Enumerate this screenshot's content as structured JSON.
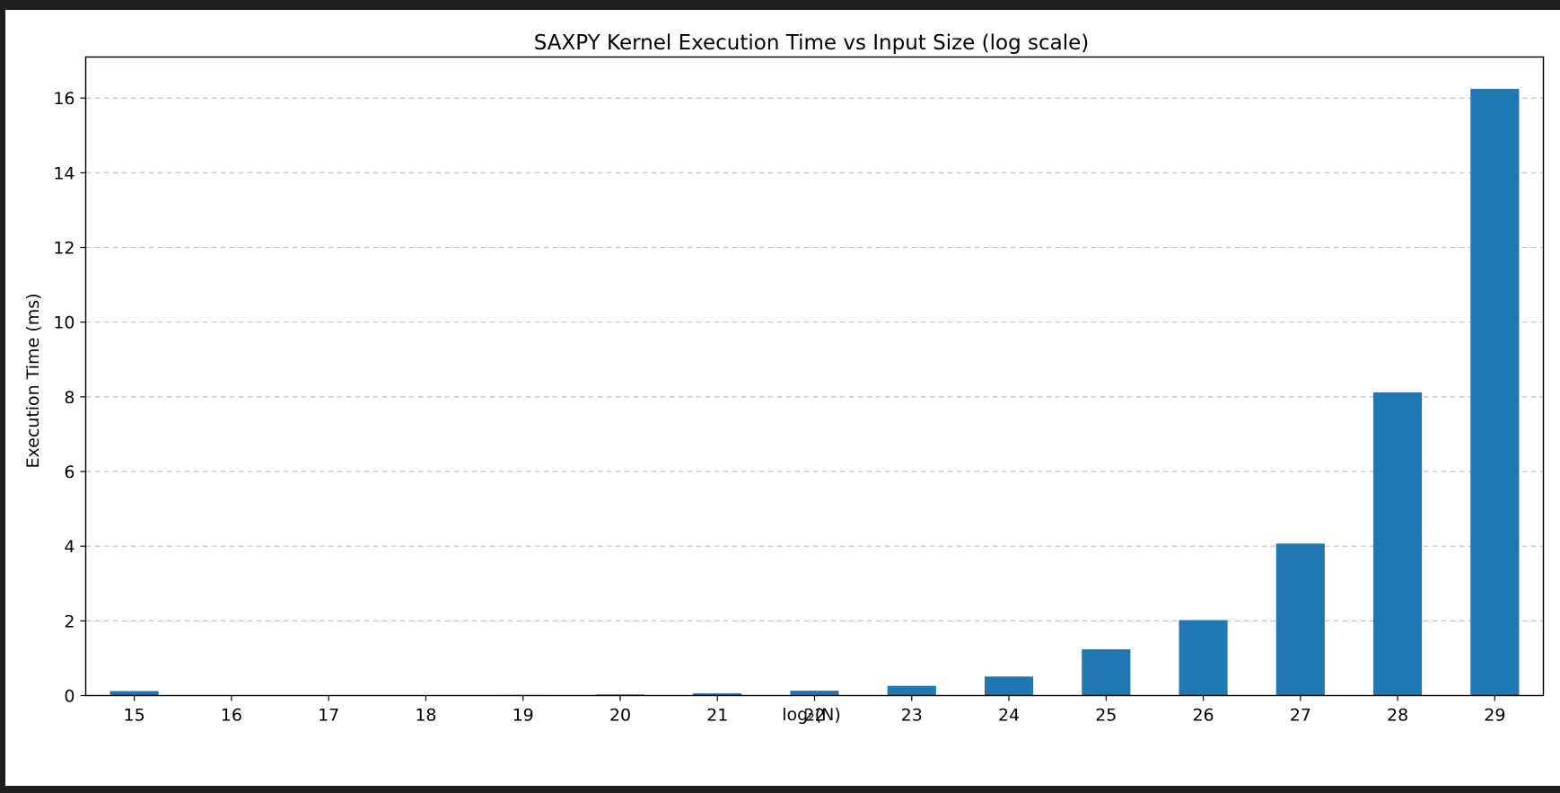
{
  "chart_data": {
    "type": "bar",
    "title": "SAXPY Kernel Execution Time vs Input Size (log scale)",
    "xlabel": "log₂(N)",
    "ylabel": "Execution Time (ms)",
    "categories": [
      "15",
      "16",
      "17",
      "18",
      "19",
      "20",
      "21",
      "22",
      "23",
      "24",
      "25",
      "26",
      "27",
      "28",
      "29"
    ],
    "values": [
      0.12,
      0.003,
      0.004,
      0.006,
      0.015,
      0.03,
      0.06,
      0.13,
      0.26,
      0.51,
      1.24,
      2.02,
      4.07,
      8.12,
      16.25
    ],
    "ylim": [
      0,
      17.1
    ],
    "yticks": [
      0,
      2,
      4,
      6,
      8,
      10,
      12,
      14,
      16
    ],
    "grid": "y-dashed",
    "bar_color": "#1f77b4"
  }
}
